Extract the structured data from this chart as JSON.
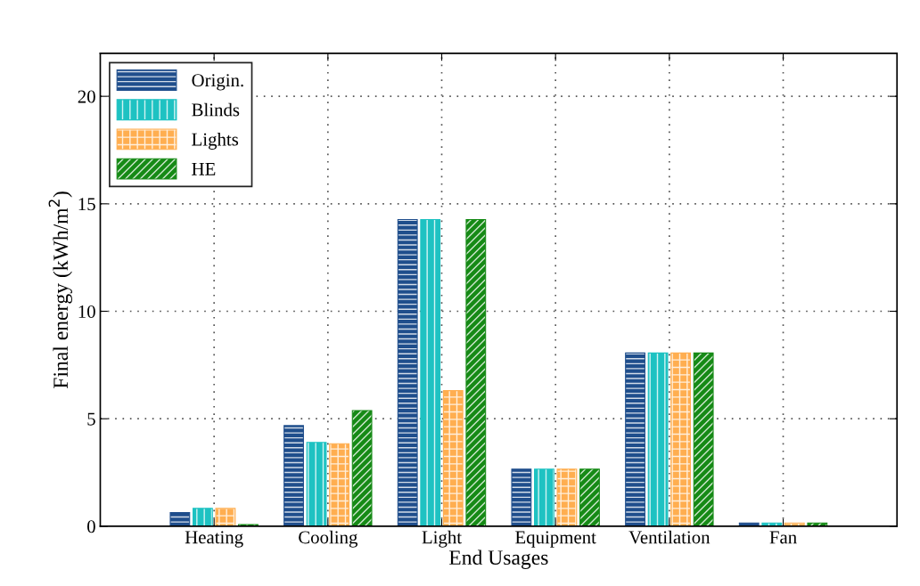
{
  "chart_data": {
    "type": "bar",
    "xlabel": "End Usages",
    "ylabel": "Final energy (kWh/m$^{2}$)",
    "categories": [
      "Heating",
      "Cooling",
      "Light",
      "Equipment",
      "Ventilation",
      "Fan"
    ],
    "series": [
      {
        "name": "Origin.",
        "color": "#1f4e8c",
        "values": [
          0.63,
          4.68,
          14.27,
          2.66,
          8.06,
          0.15
        ]
      },
      {
        "name": "Blinds",
        "color": "#1ec2c2",
        "values": [
          0.83,
          3.9,
          14.27,
          2.66,
          8.06,
          0.15
        ]
      },
      {
        "name": "Lights",
        "color": "#ffae50",
        "values": [
          0.83,
          3.84,
          6.31,
          2.66,
          8.06,
          0.15
        ]
      },
      {
        "name": "HE",
        "color": "#168a16",
        "values": [
          0.08,
          5.38,
          14.27,
          2.66,
          8.06,
          0.15
        ]
      }
    ],
    "ylim": [
      0,
      22
    ],
    "yticks": [
      0,
      5,
      10,
      15,
      20
    ],
    "grid": true,
    "legend": "top left"
  }
}
